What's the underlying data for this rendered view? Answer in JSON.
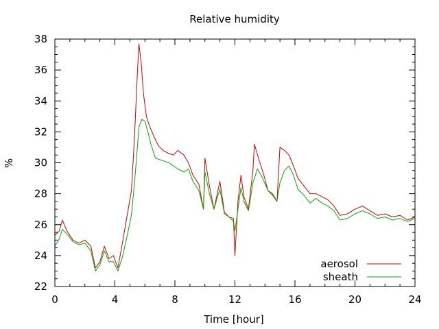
{
  "chart_data": {
    "type": "line",
    "title": "Relative humidity",
    "xlabel": "Time [hour]",
    "ylabel": "%",
    "xlim": [
      0,
      24
    ],
    "ylim": [
      22,
      38
    ],
    "x_ticks": [
      0,
      4,
      8,
      12,
      16,
      20,
      24
    ],
    "y_ticks": [
      22,
      24,
      26,
      28,
      30,
      32,
      34,
      36,
      38
    ],
    "grid": false,
    "legend_position": "bottom-right",
    "series": [
      {
        "name": "aerosol",
        "color": "#cc0000",
        "points": [
          [
            0,
            25.3
          ],
          [
            0.3,
            25.6
          ],
          [
            0.5,
            26.3
          ],
          [
            0.8,
            25.6
          ],
          [
            1.2,
            25.0
          ],
          [
            1.6,
            24.8
          ],
          [
            2.0,
            25.0
          ],
          [
            2.4,
            24.6
          ],
          [
            2.7,
            23.2
          ],
          [
            3.0,
            23.6
          ],
          [
            3.3,
            24.6
          ],
          [
            3.6,
            23.8
          ],
          [
            3.9,
            24.0
          ],
          [
            4.2,
            23.2
          ],
          [
            4.5,
            24.8
          ],
          [
            4.8,
            26.5
          ],
          [
            5.1,
            28.2
          ],
          [
            5.3,
            31.5
          ],
          [
            5.5,
            35.8
          ],
          [
            5.6,
            37.7
          ],
          [
            5.75,
            36.5
          ],
          [
            5.9,
            34.5
          ],
          [
            6.1,
            33.0
          ],
          [
            6.3,
            32.4
          ],
          [
            6.6,
            31.7
          ],
          [
            6.9,
            31.1
          ],
          [
            7.2,
            30.8
          ],
          [
            7.6,
            30.6
          ],
          [
            7.9,
            30.5
          ],
          [
            8.2,
            30.8
          ],
          [
            8.6,
            30.5
          ],
          [
            8.9,
            30.0
          ],
          [
            9.2,
            29.2
          ],
          [
            9.6,
            28.6
          ],
          [
            9.9,
            27.0
          ],
          [
            10.0,
            30.3
          ],
          [
            10.3,
            28.5
          ],
          [
            10.6,
            27.0
          ],
          [
            11.0,
            28.8
          ],
          [
            11.3,
            26.8
          ],
          [
            11.6,
            26.5
          ],
          [
            11.9,
            26.4
          ],
          [
            12.0,
            24.0
          ],
          [
            12.2,
            27.5
          ],
          [
            12.4,
            29.2
          ],
          [
            12.6,
            27.8
          ],
          [
            12.9,
            27.0
          ],
          [
            13.2,
            29.5
          ],
          [
            13.3,
            31.2
          ],
          [
            13.6,
            30.2
          ],
          [
            13.9,
            29.3
          ],
          [
            14.2,
            28.2
          ],
          [
            14.5,
            28.0
          ],
          [
            14.8,
            27.5
          ],
          [
            15.0,
            31.0
          ],
          [
            15.3,
            30.8
          ],
          [
            15.6,
            30.5
          ],
          [
            15.9,
            29.8
          ],
          [
            16.2,
            29.0
          ],
          [
            16.6,
            28.5
          ],
          [
            17.0,
            28.0
          ],
          [
            17.4,
            28.0
          ],
          [
            17.8,
            27.8
          ],
          [
            18.2,
            27.6
          ],
          [
            18.6,
            27.2
          ],
          [
            19.0,
            26.6
          ],
          [
            19.5,
            26.7
          ],
          [
            20.0,
            27.0
          ],
          [
            20.5,
            27.2
          ],
          [
            21.0,
            26.9
          ],
          [
            21.5,
            26.6
          ],
          [
            22.0,
            26.7
          ],
          [
            22.5,
            26.5
          ],
          [
            23.0,
            26.6
          ],
          [
            23.5,
            26.3
          ],
          [
            24.0,
            26.5
          ]
        ]
      },
      {
        "name": "sheath",
        "color": "#00aa00",
        "points": [
          [
            0,
            24.6
          ],
          [
            0.3,
            25.1
          ],
          [
            0.5,
            25.7
          ],
          [
            0.8,
            25.4
          ],
          [
            1.2,
            24.9
          ],
          [
            1.6,
            24.7
          ],
          [
            2.0,
            24.8
          ],
          [
            2.4,
            24.3
          ],
          [
            2.7,
            23.0
          ],
          [
            3.0,
            23.4
          ],
          [
            3.3,
            24.3
          ],
          [
            3.6,
            23.6
          ],
          [
            3.9,
            23.6
          ],
          [
            4.2,
            23.0
          ],
          [
            4.5,
            23.9
          ],
          [
            4.8,
            25.2
          ],
          [
            5.1,
            26.6
          ],
          [
            5.3,
            28.6
          ],
          [
            5.5,
            31.0
          ],
          [
            5.6,
            32.3
          ],
          [
            5.8,
            32.8
          ],
          [
            6.0,
            32.7
          ],
          [
            6.2,
            32.0
          ],
          [
            6.4,
            31.2
          ],
          [
            6.7,
            30.3
          ],
          [
            7.0,
            30.2
          ],
          [
            7.3,
            30.1
          ],
          [
            7.6,
            30.0
          ],
          [
            7.9,
            29.8
          ],
          [
            8.2,
            29.6
          ],
          [
            8.6,
            29.4
          ],
          [
            8.9,
            29.6
          ],
          [
            9.2,
            28.8
          ],
          [
            9.6,
            28.2
          ],
          [
            9.9,
            27.0
          ],
          [
            10.0,
            29.4
          ],
          [
            10.3,
            28.0
          ],
          [
            10.6,
            27.0
          ],
          [
            11.0,
            28.3
          ],
          [
            11.3,
            26.7
          ],
          [
            11.6,
            26.5
          ],
          [
            11.9,
            26.2
          ],
          [
            12.0,
            25.6
          ],
          [
            12.2,
            27.0
          ],
          [
            12.4,
            28.4
          ],
          [
            12.6,
            27.5
          ],
          [
            12.9,
            26.9
          ],
          [
            13.2,
            28.7
          ],
          [
            13.5,
            29.6
          ],
          [
            13.8,
            29.1
          ],
          [
            14.2,
            28.2
          ],
          [
            14.5,
            27.9
          ],
          [
            14.8,
            27.5
          ],
          [
            15.0,
            28.7
          ],
          [
            15.3,
            29.5
          ],
          [
            15.6,
            29.8
          ],
          [
            15.9,
            29.2
          ],
          [
            16.2,
            28.3
          ],
          [
            16.6,
            27.9
          ],
          [
            17.0,
            27.4
          ],
          [
            17.4,
            27.7
          ],
          [
            17.8,
            27.4
          ],
          [
            18.2,
            27.2
          ],
          [
            18.6,
            26.9
          ],
          [
            19.0,
            26.3
          ],
          [
            19.5,
            26.4
          ],
          [
            20.0,
            26.7
          ],
          [
            20.5,
            26.9
          ],
          [
            21.0,
            26.7
          ],
          [
            21.5,
            26.4
          ],
          [
            22.0,
            26.5
          ],
          [
            22.5,
            26.3
          ],
          [
            23.0,
            26.4
          ],
          [
            23.5,
            26.2
          ],
          [
            24.0,
            26.4
          ]
        ]
      }
    ]
  }
}
